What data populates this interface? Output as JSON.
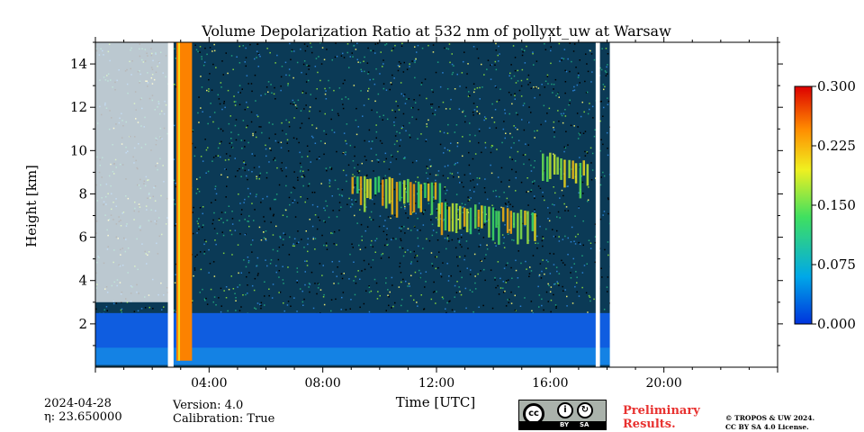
{
  "chart_data": {
    "type": "heatmap",
    "title": "Volume Depolarization Ratio at 532 nm of pollyxt_uw at Warsaw",
    "xlabel": "Time [UTC]",
    "ylabel": "Height [km]",
    "xlim_hours": [
      0,
      24
    ],
    "ylim": [
      0,
      15
    ],
    "x_ticks": [
      "04:00",
      "08:00",
      "12:00",
      "16:00",
      "20:00"
    ],
    "x_tick_hours": [
      4,
      8,
      12,
      16,
      20
    ],
    "y_ticks": [
      2,
      4,
      6,
      8,
      10,
      12,
      14
    ],
    "colorbar": {
      "range": [
        0.0,
        0.3
      ],
      "ticks": [
        "0.000",
        "0.075",
        "0.150",
        "0.225",
        "0.300"
      ],
      "colormap": "jet",
      "colors": [
        "#0033dd",
        "#00a8e8",
        "#3fe060",
        "#f0f020",
        "#ff8c00",
        "#dd0000"
      ]
    },
    "data_gaps_hours": [
      [
        2.55,
        2.75
      ],
      [
        17.6,
        17.75
      ],
      [
        18.1,
        24
      ]
    ],
    "features": [
      {
        "kind": "boundary layer, low depolarization",
        "start_h": 0.0,
        "end_h": 18.1,
        "bottom_km": 0.1,
        "top_km": 2.5,
        "value": 0.02
      },
      {
        "kind": "high depolarization column",
        "start_h": 2.85,
        "end_h": 3.4,
        "bottom_km": 0.3,
        "top_km": 15.0,
        "value": 0.25
      },
      {
        "kind": "cirrus layer",
        "start_h": 9.0,
        "end_h": 12.2,
        "bottom_km": 7.0,
        "top_km": 9.0,
        "value": 0.2
      },
      {
        "kind": "cirrus layer",
        "start_h": 12.0,
        "end_h": 15.5,
        "bottom_km": 5.8,
        "top_km": 7.7,
        "value": 0.2
      },
      {
        "kind": "cirrus layer",
        "start_h": 15.7,
        "end_h": 17.4,
        "bottom_km": 8.0,
        "top_km": 10.0,
        "value": 0.22
      }
    ]
  },
  "footer": {
    "date": "2024-04-28",
    "eta": "η: 23.650000",
    "version": "Version: 4.0",
    "calibration": "Calibration: True",
    "preliminary_line1": "Preliminary",
    "preliminary_line2": "Results.",
    "copyright_line1": "© TROPOS & UW 2024.",
    "copyright_line2": "CC BY SA 4.0 License.",
    "license_badge": {
      "cc": "cc",
      "by": "BY",
      "sa": "SA"
    }
  }
}
